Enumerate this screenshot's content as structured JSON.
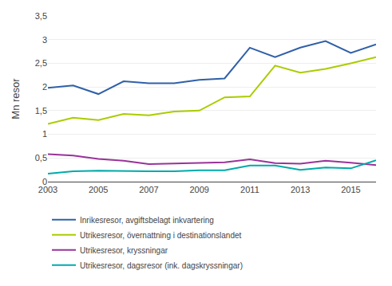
{
  "chart_data": {
    "type": "line",
    "y_label": "Mn resor",
    "x": [
      2003,
      2004,
      2005,
      2006,
      2007,
      2008,
      2009,
      2010,
      2011,
      2012,
      2013,
      2014,
      2015,
      2016
    ],
    "series": [
      {
        "name": "Inrikesresor, avgiftsbelagt inkvartering",
        "color": "#3060A8",
        "values": [
          1.98,
          2.03,
          1.85,
          2.12,
          2.08,
          2.08,
          2.15,
          2.18,
          2.83,
          2.63,
          2.83,
          2.97,
          2.72,
          2.9
        ]
      },
      {
        "name": "Utrikesresor, övernattning i destinationslandet",
        "color": "#AACC00",
        "values": [
          1.22,
          1.35,
          1.3,
          1.43,
          1.4,
          1.48,
          1.5,
          1.78,
          1.8,
          2.45,
          2.3,
          2.38,
          2.5,
          2.63
        ]
      },
      {
        "name": "Utrikesresor, kryssningar",
        "color": "#993399",
        "values": [
          0.58,
          0.55,
          0.48,
          0.44,
          0.37,
          0.38,
          0.4,
          0.41,
          0.47,
          0.39,
          0.38,
          0.44,
          0.4,
          0.35
        ]
      },
      {
        "name": "Utrikesresor, dagsresor (ink. dagskryssningar)",
        "color": "#00AAAA",
        "values": [
          0.17,
          0.22,
          0.23,
          0.22,
          0.22,
          0.22,
          0.24,
          0.24,
          0.34,
          0.34,
          0.25,
          0.3,
          0.28,
          0.45
        ]
      }
    ],
    "xlim": [
      2003,
      2016
    ],
    "xticks": [
      2003,
      2005,
      2007,
      2009,
      2011,
      2013,
      2015
    ],
    "ylim": [
      0,
      3.5
    ],
    "yticks": [
      0,
      {
        "value": 0.5,
        "label": "0,5"
      },
      1,
      {
        "value": 1.5,
        "label": "1,5"
      },
      2,
      {
        "value": 2.5,
        "label": "2,5"
      },
      3,
      {
        "value": 3.5,
        "label": "3,5"
      }
    ],
    "grid": true,
    "legend": "bottom"
  }
}
